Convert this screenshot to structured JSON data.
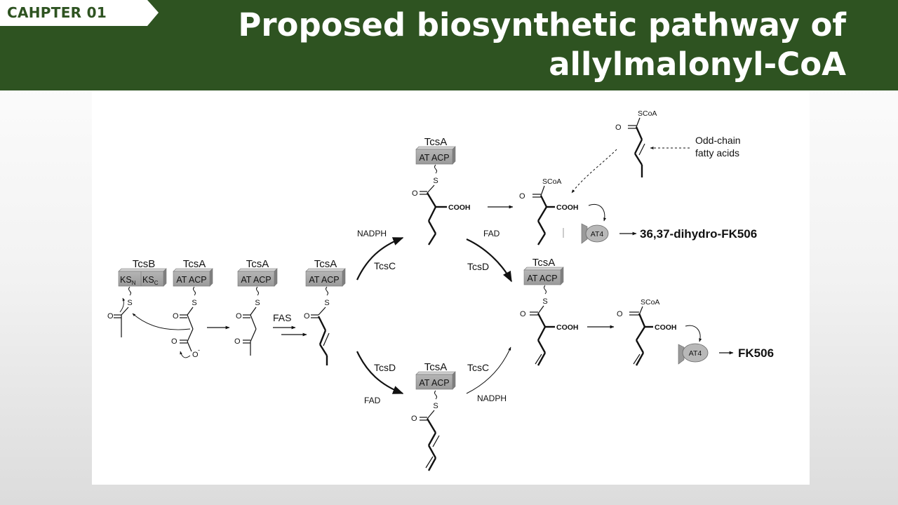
{
  "header": {
    "chapter_tag": "CAHPTER 01",
    "title_line1": "Proposed biosynthetic pathway of",
    "title_line2": "allylmalonyl-CoA",
    "background_color": "#2e5321"
  },
  "diagram": {
    "modules": {
      "tcsB": "TcsB",
      "ks_n": "KS",
      "ks_n_sub": "N",
      "ks_c": "KS",
      "ks_c_sub": "C",
      "tcsA": "TcsA",
      "at_acp": "AT ACP"
    },
    "atoms": {
      "sulfur": "S",
      "oxygen": "O",
      "oxide": "O",
      "oxide_charge": "-",
      "cooh": "COOH",
      "scoa": "SCoA"
    },
    "labels": {
      "fas": "FAS",
      "nadph": "NADPH",
      "fad": "FAD",
      "tcsC": "TcsC",
      "tcsD": "TcsD",
      "odd_chain_line1": "Odd-chain",
      "odd_chain_line2": "fatty acids",
      "at4": "AT4"
    },
    "products": {
      "dihydro": "36,37-dihydro-FK506",
      "fk506": "FK506"
    }
  }
}
